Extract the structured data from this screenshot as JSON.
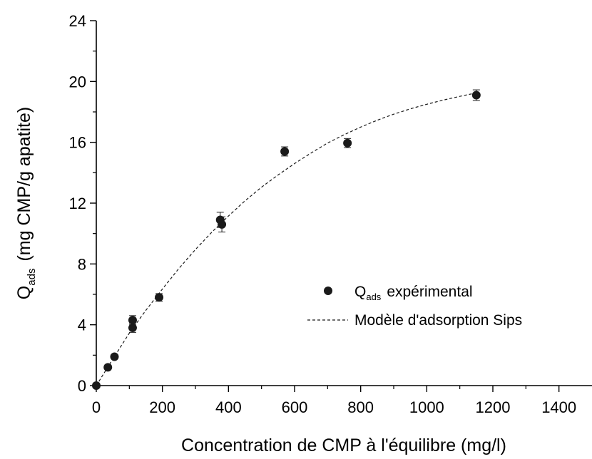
{
  "chart_data": {
    "type": "scatter",
    "xlabel": "Concentration de CMP à l'équilibre (mg/l)",
    "ylabel_main": "Q",
    "ylabel_sub": "ads",
    "ylabel_rest": "(mg CMP/g apatite)",
    "xlim": [
      0,
      1500
    ],
    "ylim": [
      0,
      24
    ],
    "x_ticks": [
      0,
      200,
      400,
      600,
      800,
      1000,
      1200,
      1400
    ],
    "y_ticks": [
      0,
      4,
      8,
      12,
      16,
      20,
      24
    ],
    "legend_position": "center-right",
    "grid": false,
    "series": [
      {
        "kind": "points",
        "label_main": "Q",
        "label_sub": "ads",
        "label_rest": "expérimental",
        "color": "#1a1a1a",
        "points": [
          {
            "x": 0,
            "y": 0,
            "err": 0
          },
          {
            "x": 35,
            "y": 1.2,
            "err": 0.1
          },
          {
            "x": 55,
            "y": 1.9,
            "err": 0.1
          },
          {
            "x": 110,
            "y": 3.8,
            "err": 0.3
          },
          {
            "x": 110,
            "y": 4.3,
            "err": 0.3
          },
          {
            "x": 190,
            "y": 5.8,
            "err": 0.25
          },
          {
            "x": 375,
            "y": 10.9,
            "err": 0.5
          },
          {
            "x": 380,
            "y": 10.6,
            "err": 0.5
          },
          {
            "x": 570,
            "y": 15.4,
            "err": 0.3
          },
          {
            "x": 760,
            "y": 15.95,
            "err": 0.3
          },
          {
            "x": 1150,
            "y": 19.1,
            "err": 0.35
          }
        ]
      },
      {
        "kind": "dashed-line",
        "label": "Modèle d'adsorption Sips",
        "color": "#1a1a1a",
        "x": [
          0,
          50,
          100,
          150,
          200,
          250,
          300,
          350,
          400,
          450,
          500,
          550,
          600,
          650,
          700,
          750,
          800,
          850,
          900,
          950,
          1000,
          1050,
          1100,
          1150
        ],
        "y": [
          0,
          1.75,
          3.45,
          4.95,
          6.35,
          7.7,
          8.95,
          10.1,
          11.15,
          12.15,
          13.05,
          13.85,
          14.6,
          15.3,
          15.95,
          16.5,
          17.0,
          17.45,
          17.85,
          18.2,
          18.5,
          18.78,
          19.02,
          19.25
        ]
      }
    ]
  }
}
